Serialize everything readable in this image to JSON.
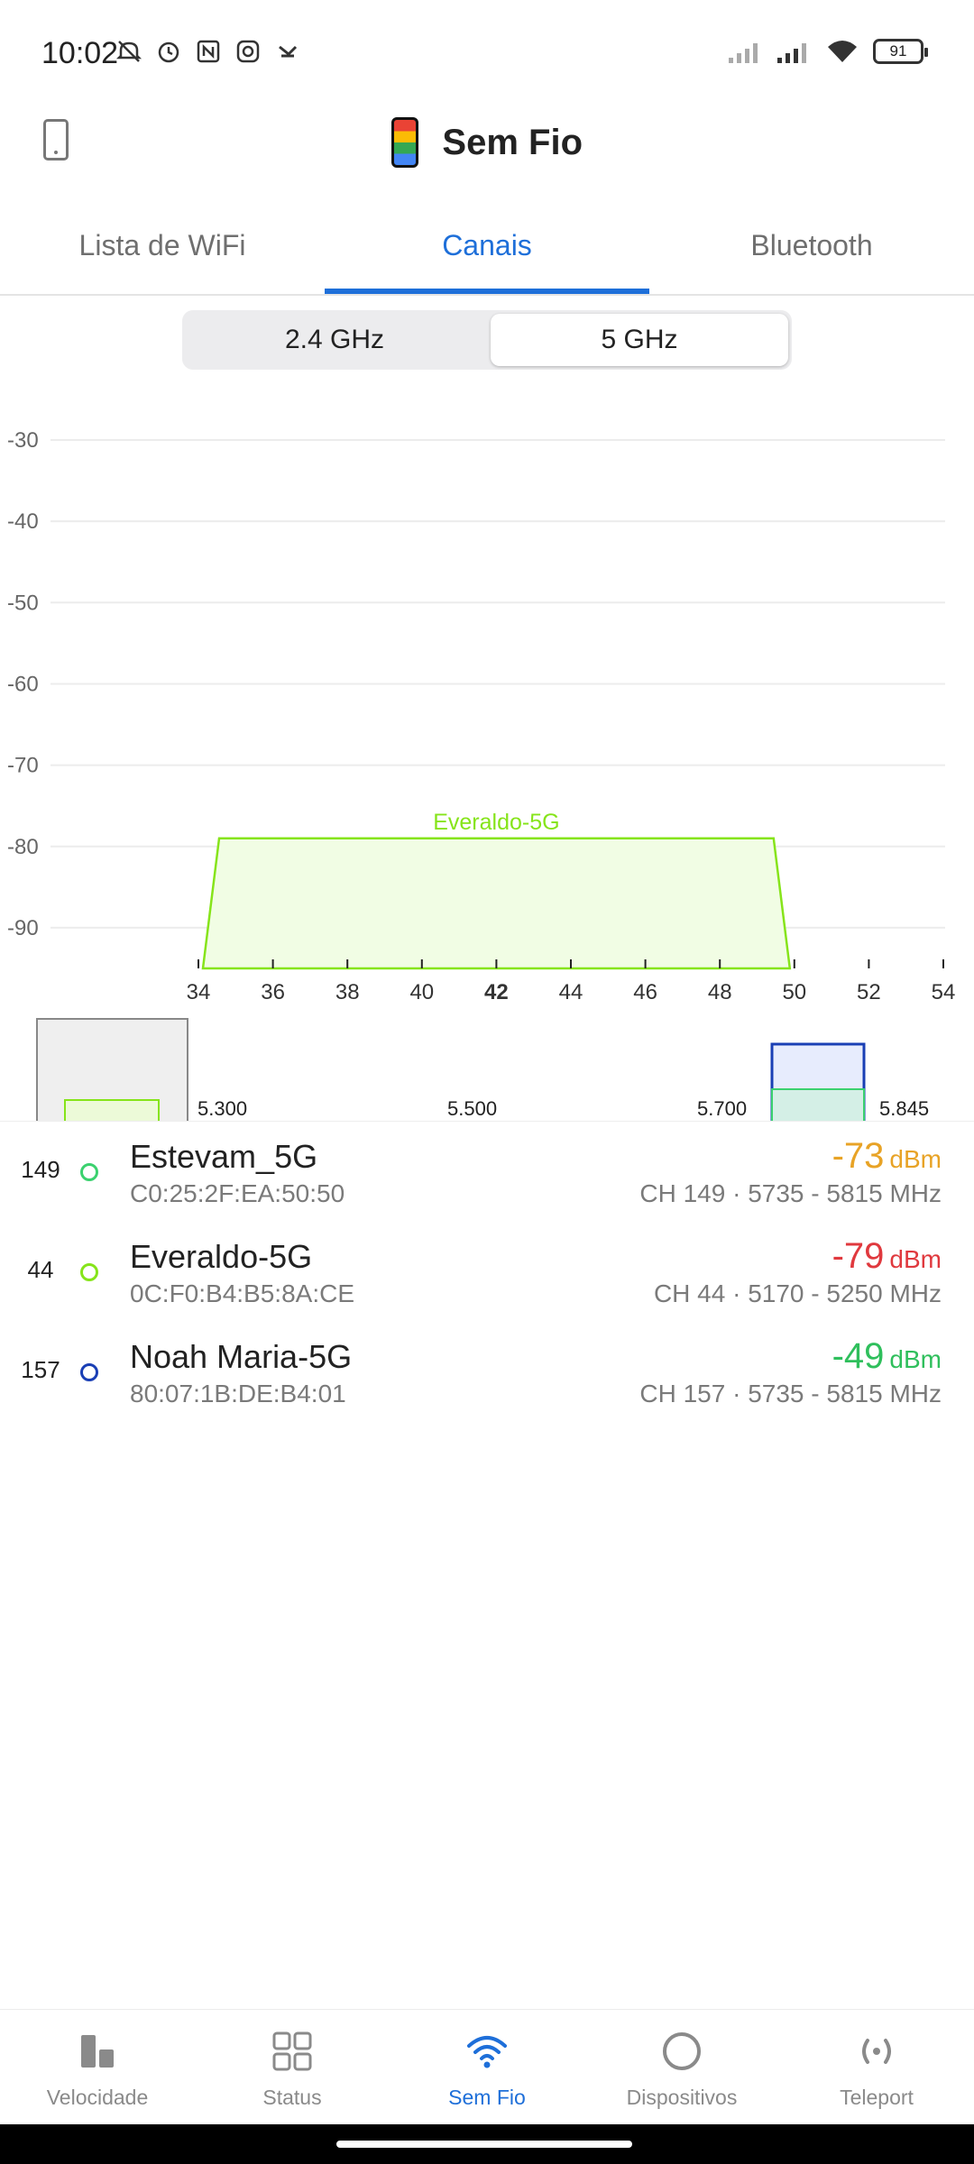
{
  "status_bar": {
    "time": "10:02",
    "battery": "91",
    "left_icons": [
      "mute-icon",
      "alarm-icon",
      "nfc-icon",
      "instagram-icon",
      "app-icon"
    ],
    "right_icons": [
      "signal-icon",
      "signal-icon",
      "wifi-icon"
    ]
  },
  "header": {
    "title": "Sem Fio",
    "left_icon": "phone-outline-icon"
  },
  "tabs": [
    {
      "label": "Lista de WiFi",
      "active": false
    },
    {
      "label": "Canais",
      "active": true
    },
    {
      "label": "Bluetooth",
      "active": false
    }
  ],
  "band_selector": {
    "options": [
      "2.4 GHz",
      "5 GHz"
    ],
    "selected": "5 GHz"
  },
  "chart_data": {
    "type": "area",
    "ylim": [
      -95,
      -30
    ],
    "yticks": [
      "-30",
      "-40",
      "-50",
      "-60",
      "-70",
      "-80",
      "-90"
    ],
    "xticks": [
      "34",
      "36",
      "38",
      "40",
      "42",
      "44",
      "46",
      "48",
      "50",
      "52",
      "54"
    ],
    "highlighted_xtick": "42",
    "series": [
      {
        "name": "Everaldo-5G",
        "center": 42,
        "start": 34,
        "end": 50,
        "signal": -79,
        "color": "#86e41a"
      }
    ]
  },
  "band_overview": {
    "labels": [
      "5.300",
      "5.500",
      "5.700",
      "5.845"
    ]
  },
  "networks": [
    {
      "channel": "149",
      "name": "Estevam_5G",
      "mac": "C0:25:2F:EA:50:50",
      "signal": "-73",
      "unit": "dBm",
      "info": "CH 149 · 5735 - 5815 MHz",
      "signal_color": "#e8a326",
      "dot_color": "#3bd16f"
    },
    {
      "channel": "44",
      "name": "Everaldo-5G",
      "mac": "0C:F0:B4:B5:8A:CE",
      "signal": "-79",
      "unit": "dBm",
      "info": "CH 44 · 5170 - 5250 MHz",
      "signal_color": "#e0393e",
      "dot_color": "#86e41a"
    },
    {
      "channel": "157",
      "name": "Noah Maria-5G",
      "mac": "80:07:1B:DE:B4:01",
      "signal": "-49",
      "unit": "dBm",
      "info": "CH 157 · 5735 - 5815 MHz",
      "signal_color": "#2fbf5c",
      "dot_color": "#1a3fb5"
    }
  ],
  "bottom_nav": [
    {
      "label": "Velocidade",
      "icon": "bar-chart-icon",
      "active": false
    },
    {
      "label": "Status",
      "icon": "grid-icon",
      "active": false
    },
    {
      "label": "Sem Fio",
      "icon": "wifi-icon",
      "active": true
    },
    {
      "label": "Dispositivos",
      "icon": "circle-icon",
      "active": false
    },
    {
      "label": "Teleport",
      "icon": "teleport-icon",
      "active": false
    }
  ]
}
